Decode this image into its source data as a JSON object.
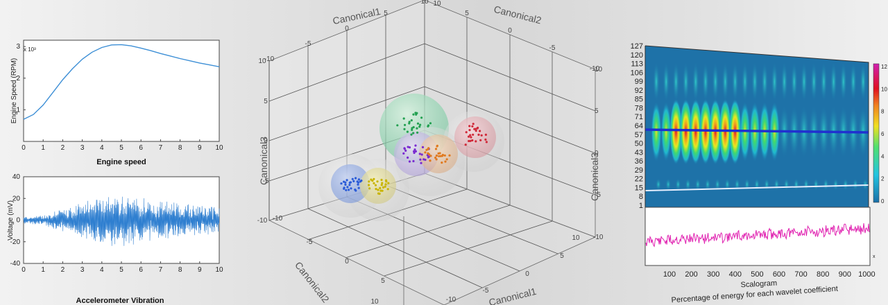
{
  "chart_data": [
    {
      "type": "line",
      "title": "",
      "xlabel": "Engine speed",
      "ylabel": "Engine Speed (RPM)",
      "y_exponent": "x 10³",
      "xlim": [
        0,
        10
      ],
      "ylim": [
        0,
        3.2
      ],
      "xticks": [
        "0",
        "1",
        "2",
        "3",
        "4",
        "5",
        "6",
        "7",
        "8",
        "9",
        "10"
      ],
      "yticks": [
        "1",
        "2",
        "3"
      ],
      "series": [
        {
          "x": [
            0,
            0.5,
            1,
            1.5,
            2,
            2.5,
            3,
            3.5,
            4,
            4.5,
            5,
            5.5,
            6,
            6.5,
            7,
            7.5,
            8,
            8.5,
            9,
            9.5,
            10
          ],
          "values": [
            0.7,
            0.85,
            1.15,
            1.55,
            1.95,
            2.3,
            2.6,
            2.82,
            2.97,
            3.05,
            3.06,
            3.02,
            2.95,
            2.87,
            2.78,
            2.7,
            2.62,
            2.55,
            2.48,
            2.42,
            2.36
          ]
        }
      ],
      "color": "#3d8fd6"
    },
    {
      "type": "line",
      "title": "",
      "xlabel": "Accelerometer Vibration",
      "ylabel": "Voltage (mV)",
      "xlim": [
        0,
        10
      ],
      "ylim": [
        -40,
        40
      ],
      "xticks": [
        "0",
        "1",
        "2",
        "3",
        "4",
        "5",
        "6",
        "7",
        "8",
        "9",
        "10"
      ],
      "yticks": [
        "-40",
        "-20",
        "0",
        "20",
        "40"
      ],
      "envelope": {
        "x": [
          0,
          1,
          2,
          3,
          4,
          5,
          6,
          7,
          8,
          9,
          10
        ],
        "amplitude": [
          3,
          4,
          9,
          15,
          19,
          21,
          18,
          15,
          14,
          12,
          11
        ]
      },
      "color": "#2f7fd0"
    },
    {
      "type": "scatter",
      "projection": "3d",
      "title": "",
      "xlabel": "Canonical1",
      "ylabel": "Canonical2",
      "zlabel": "Canonical3",
      "ticks": [
        "-10",
        "-5",
        "0",
        "5",
        "10"
      ],
      "clusters": [
        {
          "color": "#2a5bd7",
          "sphere": "#6f8fd8",
          "center": [
            -6,
            -7,
            -2
          ]
        },
        {
          "color": "#c8b400",
          "sphere": "#d8d07a",
          "center": [
            -4,
            -8,
            -2
          ]
        },
        {
          "color": "#22a050",
          "sphere": "#7fd3a0",
          "center": [
            0,
            -2,
            4
          ]
        },
        {
          "color": "#7a2ad0",
          "sphere": "#b9a4e0",
          "center": [
            0,
            -3,
            1
          ]
        },
        {
          "color": "#e07a20",
          "sphere": "#e8b890",
          "center": [
            1,
            -3,
            0
          ]
        },
        {
          "color": "#d02a3a",
          "sphere": "#e4a0a8",
          "center": [
            4,
            -2,
            1
          ]
        }
      ]
    },
    {
      "type": "heatmap",
      "title": "",
      "xlabel": "Scalogram",
      "xlabel2": "Percentage of energy for each wavelet coefficient",
      "yticks": [
        "1",
        "8",
        "15",
        "22",
        "29",
        "36",
        "43",
        "50",
        "57",
        "64",
        "71",
        "78",
        "85",
        "92",
        "99",
        "106",
        "113",
        "120",
        "127"
      ],
      "xticks": [
        "100",
        "200",
        "300",
        "400",
        "500",
        "600",
        "700",
        "800",
        "900",
        "1000"
      ],
      "x_exponent": "x",
      "colorbar": [
        "0",
        "2",
        "4",
        "6",
        "8",
        "10",
        "12"
      ],
      "colormap": "jet",
      "ridge_scale": 64,
      "baseline_scale": 15
    }
  ]
}
